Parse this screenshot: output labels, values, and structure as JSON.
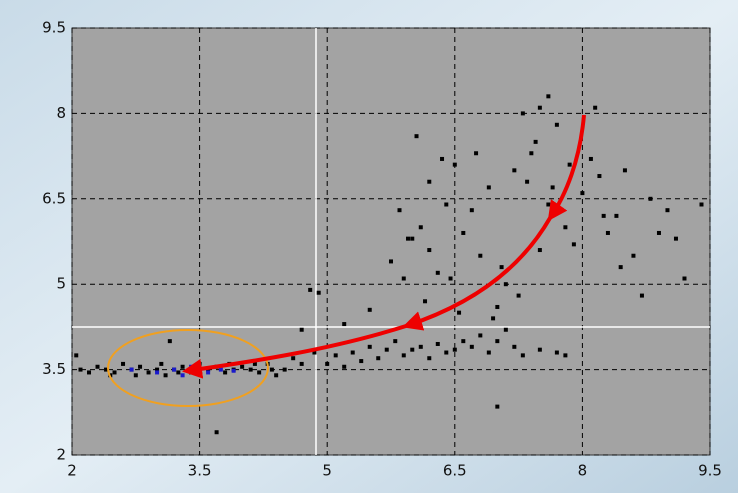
{
  "chart_data": {
    "type": "scatter",
    "grid": true,
    "xlim": [
      2,
      9.5
    ],
    "ylim": [
      2,
      9.5
    ],
    "xticks": [
      2,
      3.5,
      5,
      6.5,
      8,
      9.5
    ],
    "yticks": [
      2,
      3.5,
      5,
      6.5,
      8,
      9.5
    ],
    "series": [
      {
        "color": "#000000",
        "x": [
          2.05,
          2.1,
          2.2,
          2.3,
          2.4,
          2.5,
          2.6,
          2.7,
          2.8,
          2.9,
          3.0,
          3.05,
          3.1,
          3.15,
          3.2,
          3.3,
          3.4,
          3.5,
          3.6,
          3.7,
          3.8,
          3.9,
          4.0,
          4.1,
          4.2,
          4.3,
          4.4,
          4.5,
          3.7,
          2.45,
          2.75,
          3.25,
          3.85,
          4.15,
          4.35,
          4.6,
          4.7,
          4.8,
          4.9,
          4.85,
          5.0,
          5.1,
          5.2,
          5.3,
          5.4,
          5.5,
          5.6,
          5.7,
          5.8,
          5.9,
          6.0,
          6.1,
          6.2,
          6.3,
          6.4,
          6.5,
          6.6,
          6.7,
          6.8,
          6.9,
          7.0,
          7.1,
          7.2,
          7.3,
          7.5,
          7.7,
          7.8,
          7.0,
          5.2,
          5.5,
          4.7,
          5.75,
          5.9,
          6.0,
          6.1,
          6.2,
          6.3,
          6.35,
          6.4,
          6.5,
          6.6,
          6.7,
          6.8,
          6.9,
          7.0,
          7.1,
          7.2,
          7.3,
          7.35,
          7.4,
          7.5,
          7.6,
          7.7,
          7.8,
          7.9,
          8.0,
          8.1,
          8.2,
          8.3,
          8.4,
          8.5,
          8.6,
          8.7,
          8.8,
          8.9,
          9.0,
          9.1,
          9.2,
          9.4,
          7.6,
          7.5,
          6.2,
          5.85,
          6.05,
          6.45,
          6.75,
          7.05,
          7.25,
          7.45,
          7.65,
          7.85,
          8.15,
          8.25,
          8.45,
          6.15,
          6.55,
          6.95,
          5.95
        ],
        "values": [
          3.75,
          3.5,
          3.45,
          3.55,
          3.5,
          3.45,
          3.6,
          3.5,
          3.55,
          3.45,
          3.5,
          3.6,
          3.4,
          4.0,
          3.5,
          3.55,
          3.45,
          3.6,
          3.5,
          3.55,
          3.45,
          3.5,
          3.55,
          3.5,
          3.45,
          3.6,
          3.4,
          3.5,
          2.4,
          3.4,
          3.4,
          3.45,
          3.6,
          3.6,
          3.5,
          3.7,
          3.6,
          4.9,
          4.85,
          3.8,
          3.6,
          3.75,
          3.55,
          3.8,
          3.65,
          3.9,
          3.7,
          3.85,
          4.0,
          3.75,
          3.85,
          3.9,
          3.7,
          3.95,
          3.8,
          3.85,
          4.0,
          3.9,
          4.1,
          3.8,
          4.0,
          4.2,
          3.9,
          3.75,
          3.85,
          3.8,
          3.75,
          2.85,
          4.3,
          4.55,
          4.2,
          5.4,
          5.1,
          5.8,
          6.0,
          5.6,
          5.2,
          7.2,
          6.4,
          7.1,
          5.9,
          6.3,
          5.5,
          6.7,
          4.6,
          5.0,
          7.0,
          8.0,
          6.8,
          7.3,
          5.6,
          6.4,
          7.8,
          6.0,
          5.7,
          6.6,
          7.2,
          6.9,
          5.9,
          6.2,
          7.0,
          5.5,
          4.8,
          6.5,
          5.9,
          6.3,
          5.8,
          5.1,
          6.4,
          8.3,
          8.1,
          6.8,
          6.3,
          7.6,
          5.1,
          7.3,
          5.3,
          4.8,
          7.5,
          6.7,
          7.1,
          8.1,
          6.2,
          5.3,
          4.7,
          4.5,
          4.4,
          5.8
        ]
      },
      {
        "color": "#1a1acc",
        "x": [
          2.7,
          3.0,
          3.2,
          3.3,
          3.4,
          3.6,
          3.75,
          3.9
        ],
        "values": [
          3.5,
          3.45,
          3.5,
          3.4,
          3.55,
          3.45,
          3.5,
          3.48
        ]
      }
    ]
  }
}
